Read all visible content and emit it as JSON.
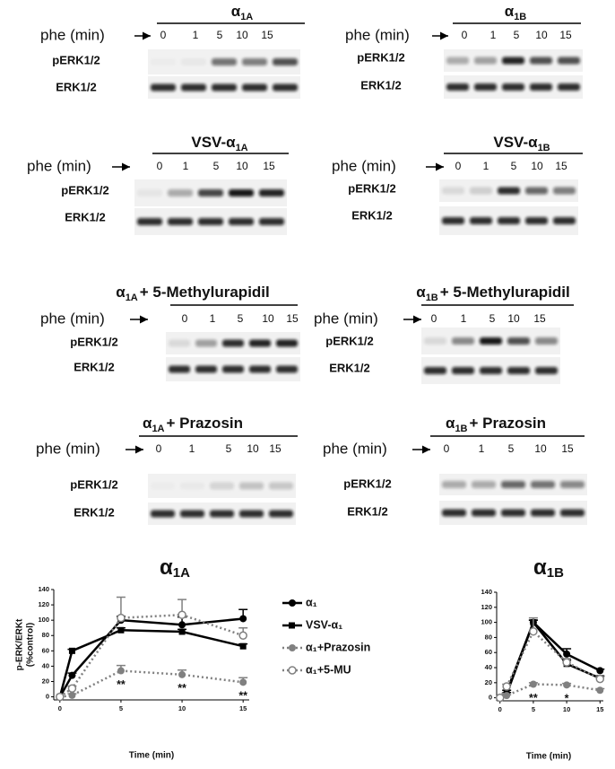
{
  "blots": [
    {
      "title": {
        "text": "α",
        "sub": "1A"
      },
      "phe_label": "phe (min)",
      "times": [
        0,
        1,
        5,
        10,
        15
      ],
      "rows": [
        "pERK1/2",
        "ERK1/2"
      ]
    },
    {
      "title": {
        "text": "α",
        "sub": "1B"
      },
      "phe_label": "phe (min)",
      "times": [
        0,
        1,
        5,
        10,
        15
      ],
      "rows": [
        "pERK1/2",
        "ERK1/2"
      ]
    },
    {
      "title": {
        "text": "VSV-α",
        "sub": "1A"
      },
      "phe_label": "phe (min)",
      "times": [
        0,
        1,
        5,
        10,
        15
      ],
      "rows": [
        "pERK1/2",
        "ERK1/2"
      ]
    },
    {
      "title": {
        "text": "VSV-α",
        "sub": "1B"
      },
      "phe_label": "phe (min)",
      "times": [
        0,
        1,
        5,
        10,
        15
      ],
      "rows": [
        "pERK1/2",
        "ERK1/2"
      ]
    },
    {
      "title": {
        "text": "α",
        "sub": "1A",
        "suffix": "+ 5-Methylurapidil"
      },
      "phe_label": "phe (min)",
      "times": [
        0,
        1,
        5,
        10,
        15
      ],
      "rows": [
        "pERK1/2",
        "ERK1/2"
      ]
    },
    {
      "title": {
        "text": "α",
        "sub": "1B",
        "suffix": "+ 5-Methylurapidil"
      },
      "phe_label": "phe (min)",
      "times": [
        0,
        1,
        5,
        10,
        15
      ],
      "rows": [
        "pERK1/2",
        "ERK1/2"
      ]
    },
    {
      "title": {
        "text": "α",
        "sub": "1A",
        "suffix": "+ Prazosin"
      },
      "phe_label": "phe (min)",
      "times": [
        0,
        1,
        5,
        10,
        15
      ],
      "rows": [
        "pERK1/2",
        "ERK1/2"
      ]
    },
    {
      "title": {
        "text": "α",
        "sub": "1B",
        "suffix": "+ Prazosin"
      },
      "phe_label": "phe (min)",
      "times": [
        0,
        1,
        5,
        10,
        15
      ],
      "rows": [
        "pERK1/2",
        "ERK1/2"
      ]
    }
  ],
  "chart_data": [
    {
      "type": "line",
      "title": {
        "text": "α",
        "sub": "1A"
      },
      "ylabel": [
        "p-ERK/ERKt",
        "(%control)"
      ],
      "xlabel": "Time (min)",
      "x": [
        0,
        1,
        5,
        10,
        15
      ],
      "xlim": [
        -0.5,
        15.5
      ],
      "xticks": [
        0,
        5,
        10,
        15
      ],
      "ylim": [
        -4,
        140
      ],
      "yticks": [
        0,
        20,
        40,
        60,
        80,
        100,
        120,
        140
      ],
      "series": [
        {
          "name": "α₁",
          "color": "#000000",
          "marker": "circle",
          "dashed": false,
          "values": [
            0,
            28,
            100,
            94,
            102
          ],
          "errors": [
            null,
            3,
            5,
            10,
            12
          ]
        },
        {
          "name": "VSV-α₁",
          "color": "#000000",
          "marker": "square",
          "dashed": false,
          "values": [
            0,
            60,
            87,
            85,
            66
          ],
          "errors": [
            null,
            2,
            3,
            3,
            3
          ]
        },
        {
          "name": "α₁+Prazosin",
          "color": "#808080",
          "marker": "circle",
          "dashed": true,
          "values": [
            0,
            2,
            34,
            29,
            19
          ],
          "errors": [
            null,
            2,
            7,
            6,
            6
          ]
        },
        {
          "name": "α₁+5-MU",
          "color": "#808080",
          "marker": "circle-open",
          "dashed": true,
          "values": [
            0,
            11,
            103,
            107,
            80
          ],
          "errors": [
            null,
            3,
            27,
            20,
            10
          ]
        }
      ],
      "annotations": [
        {
          "x": 5,
          "text": "**"
        },
        {
          "x": 10,
          "text": "**"
        },
        {
          "x": 15,
          "text": "**"
        }
      ]
    },
    {
      "type": "line",
      "title": {
        "text": "α",
        "sub": "1B"
      },
      "xlabel": "Time (min)",
      "x": [
        0,
        1,
        5,
        10,
        15
      ],
      "xlim": [
        -0.5,
        15.5
      ],
      "xticks": [
        0,
        5,
        10,
        15
      ],
      "ylim": [
        -4,
        140
      ],
      "yticks": [
        0,
        20,
        40,
        60,
        80,
        100,
        120,
        140
      ],
      "series": [
        {
          "color": "#000000",
          "marker": "circle",
          "dashed": false,
          "values": [
            0,
            5,
            100,
            58,
            36
          ],
          "errors": [
            null,
            2,
            3,
            7,
            2
          ]
        },
        {
          "color": "#000000",
          "marker": "square",
          "dashed": false,
          "values": [
            0,
            8,
            100,
            45,
            26
          ],
          "errors": [
            null,
            2,
            3,
            5,
            3
          ]
        },
        {
          "color": "#808080",
          "marker": "circle",
          "dashed": true,
          "values": [
            0,
            3,
            18,
            17,
            10
          ],
          "errors": [
            null,
            1,
            2,
            2,
            2
          ]
        },
        {
          "color": "#808080",
          "marker": "circle-open",
          "dashed": true,
          "values": [
            0,
            15,
            88,
            47,
            25
          ],
          "errors": [
            null,
            3,
            18,
            5,
            3
          ]
        }
      ],
      "annotations": [
        {
          "x": 5,
          "text": "**"
        },
        {
          "x": 10,
          "text": "*"
        }
      ]
    }
  ]
}
